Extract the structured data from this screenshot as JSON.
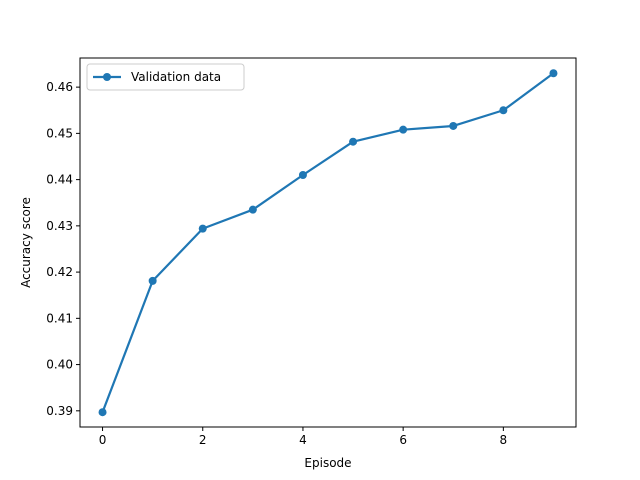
{
  "chart_data": {
    "type": "line",
    "title": "",
    "xlabel": "Episode",
    "ylabel": "Accuracy score",
    "xlim": [
      -0.45,
      9.45
    ],
    "ylim": [
      0.3865,
      0.4663
    ],
    "xticks": [
      0,
      2,
      4,
      6,
      8
    ],
    "yticks": [
      0.39,
      0.4,
      0.41,
      0.42,
      0.43,
      0.44,
      0.45,
      0.46
    ],
    "grid": false,
    "legend_position": "upper-left",
    "series": [
      {
        "name": "Validation data",
        "color": "#1f77b4",
        "marker": "circle",
        "x": [
          0,
          1,
          2,
          3,
          4,
          5,
          6,
          7,
          8,
          9
        ],
        "y": [
          0.3897,
          0.4181,
          0.4294,
          0.4335,
          0.441,
          0.4482,
          0.4508,
          0.4516,
          0.455,
          0.463
        ]
      }
    ]
  }
}
